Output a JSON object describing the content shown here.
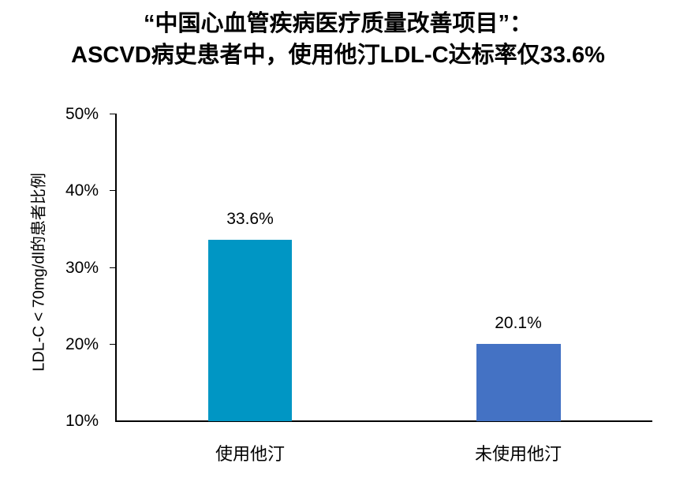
{
  "title": {
    "line1": "“中国心血管疾病医疗质量改善项目”：",
    "line2": "ASCVD病史患者中，使用他汀LDL-C达标率仅33.6%"
  },
  "chart_data": {
    "type": "bar",
    "title": "“中国心血管疾病医疗质量改善项目”：ASCVD病史患者中，使用他汀LDL-C达标率仅33.6%",
    "xlabel": "",
    "ylabel": "LDL-C < 70mg/dl的患者比例",
    "categories": [
      "使用他汀",
      "未使用他汀"
    ],
    "values": [
      33.6,
      20.1
    ],
    "value_labels": [
      "33.6%",
      "20.1%"
    ],
    "colors": [
      "#0096C4",
      "#4472C4"
    ],
    "ylim": [
      10,
      50
    ],
    "yticks": [
      "10%",
      "20%",
      "30%",
      "40%",
      "50%"
    ],
    "grid": false,
    "legend": null
  }
}
